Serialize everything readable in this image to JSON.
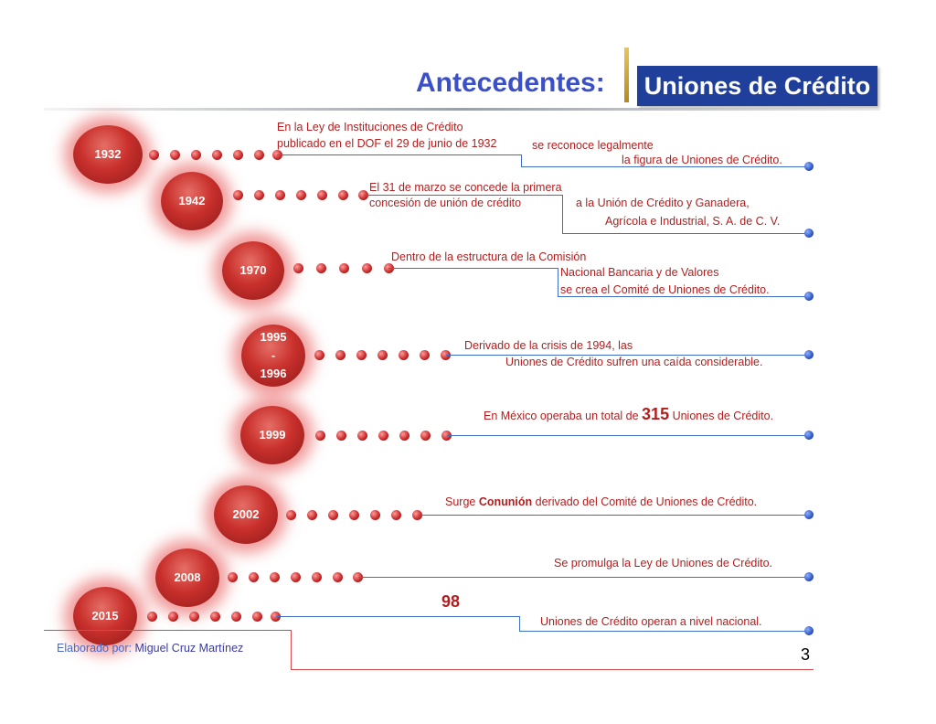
{
  "header": {
    "title": "Antecedentes:",
    "badge": "Uniones de Crédito"
  },
  "timeline": [
    {
      "year": "1932",
      "lines": [
        "En la Ley de Instituciones de Crédito",
        "publicado en el DOF el 29 de junio de 1932",
        "se reconoce legalmente",
        "la figura de Uniones de Crédito."
      ]
    },
    {
      "year": "1942",
      "lines": [
        "El 31 de marzo se concede la primera",
        "concesión de unión de crédito",
        "a la Unión de Crédito y Ganadera,",
        "Agrícola e Industrial, S. A. de C. V."
      ]
    },
    {
      "year": "1970",
      "lines": [
        "Dentro de la estructura de la Comisión",
        "Nacional Bancaria y de Valores",
        "se crea el Comité  de Uniones de Crédito."
      ]
    },
    {
      "year": "1995 - 1996",
      "year_lines": [
        "1995",
        "-",
        "1996"
      ],
      "lines": [
        "Derivado de la crisis de 1994, las",
        "Uniones de Crédito sufren una caída considerable."
      ]
    },
    {
      "year": "1999",
      "text_before": "En México operaba  un total  de",
      "number": "315",
      "text_after": "Uniones de Crédito."
    },
    {
      "year": "2002",
      "text_before": "Surge",
      "highlight": "Conunión",
      "text_after": "derivado del Comité de Uniones de Crédito."
    },
    {
      "year": "2008",
      "lines": [
        "Se promulga la Ley de Uniones de Crédito."
      ]
    },
    {
      "year": "2015",
      "number": "98",
      "lines": [
        "Uniones de Crédito  operan a nivel nacional."
      ]
    }
  ],
  "footer": {
    "author_label": "Elaborado por:",
    "author_name": "Miguel Cruz Martínez",
    "page_number": "3"
  },
  "colors": {
    "title": "#3a4fc8",
    "badge_bg": "#1f3f9b",
    "circle": "#c9302c",
    "text": "#b21e1e",
    "connector": "#3f6fc4"
  }
}
